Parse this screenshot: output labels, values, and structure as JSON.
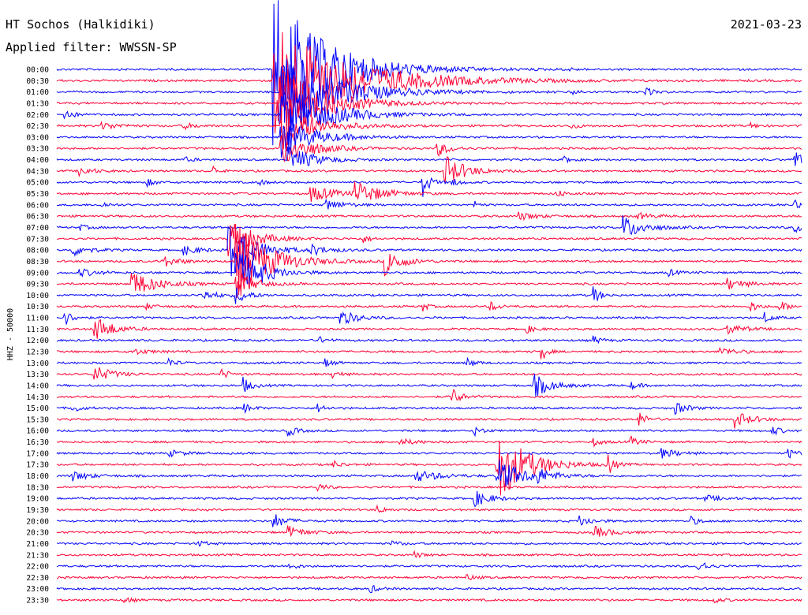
{
  "header": {
    "station": "HT Sochos (Halkidiki)",
    "date": "2021-03-23",
    "filter": "Applied filter: WWSSN-SP"
  },
  "chart_data": {
    "type": "line",
    "title": "HT Sochos (Halkidiki)",
    "subtitle": "Applied filter: WWSSN-SP",
    "date": "2021-03-23",
    "ylabel": "HHZ - 50000",
    "y_tick_labels": [
      "00:00",
      "00:30",
      "01:00",
      "01:30",
      "02:00",
      "02:30",
      "03:00",
      "03:30",
      "04:00",
      "04:30",
      "05:00",
      "05:30",
      "06:00",
      "06:30",
      "07:00",
      "07:30",
      "08:00",
      "08:30",
      "09:00",
      "09:30",
      "10:00",
      "10:30",
      "11:00",
      "11:30",
      "12:00",
      "12:30",
      "13:00",
      "13:30",
      "14:00",
      "14:30",
      "15:00",
      "15:30",
      "16:00",
      "16:30",
      "17:00",
      "17:30",
      "18:00",
      "18:30",
      "19:00",
      "19:30",
      "20:00",
      "20:30",
      "21:00",
      "21:30",
      "22:00",
      "22:30",
      "23:00",
      "23:30"
    ],
    "trace_minutes": 30,
    "colors": [
      "#0000ff",
      "#ff0033"
    ],
    "series": [
      {
        "events": [
          {
            "t": 0.29,
            "a": 8.0,
            "d": 0.065
          },
          {
            "t": 0.68,
            "a": 0.2,
            "d": 0.01
          }
        ]
      },
      {
        "events": [
          {
            "t": 0.29,
            "a": 6.0,
            "d": 0.09
          }
        ]
      },
      {
        "events": [
          {
            "t": 0.3,
            "a": 5.0,
            "d": 0.06
          },
          {
            "t": 0.69,
            "a": 0.3,
            "d": 0.01
          },
          {
            "t": 0.79,
            "a": 0.4,
            "d": 0.01
          }
        ]
      },
      {
        "events": [
          {
            "t": 0.3,
            "a": 4.0,
            "d": 0.05
          }
        ]
      },
      {
        "events": [
          {
            "t": 0.01,
            "a": 0.6,
            "d": 0.01
          },
          {
            "t": 0.3,
            "a": 3.5,
            "d": 0.05
          }
        ]
      },
      {
        "events": [
          {
            "t": 0.06,
            "a": 0.4,
            "d": 0.02
          },
          {
            "t": 0.17,
            "a": 0.3,
            "d": 0.015
          },
          {
            "t": 0.3,
            "a": 2.5,
            "d": 0.04
          },
          {
            "t": 0.69,
            "a": 0.3,
            "d": 0.01
          },
          {
            "t": 0.93,
            "a": 0.3,
            "d": 0.01
          }
        ]
      },
      {
        "events": [
          {
            "t": 0.3,
            "a": 2.0,
            "d": 0.04
          }
        ]
      },
      {
        "events": [
          {
            "t": 0.3,
            "a": 1.8,
            "d": 0.035
          },
          {
            "t": 0.51,
            "a": 0.8,
            "d": 0.015
          }
        ]
      },
      {
        "events": [
          {
            "t": 0.31,
            "a": 1.4,
            "d": 0.03
          },
          {
            "t": 0.17,
            "a": 0.3,
            "d": 0.01
          },
          {
            "t": 0.68,
            "a": 0.3,
            "d": 0.01
          },
          {
            "t": 0.99,
            "a": 1.5,
            "d": 0.006
          }
        ]
      },
      {
        "events": [
          {
            "t": 0.03,
            "a": 0.5,
            "d": 0.015
          },
          {
            "t": 0.21,
            "a": 0.5,
            "d": 0.006
          },
          {
            "t": 0.52,
            "a": 1.6,
            "d": 0.025
          }
        ]
      },
      {
        "events": [
          {
            "t": 0.12,
            "a": 0.4,
            "d": 0.01
          },
          {
            "t": 0.27,
            "a": 0.3,
            "d": 0.01
          },
          {
            "t": 0.49,
            "a": 1.8,
            "d": 0.008
          },
          {
            "t": 0.53,
            "a": 0.4,
            "d": 0.01
          }
        ]
      },
      {
        "events": [
          {
            "t": 0.34,
            "a": 0.8,
            "d": 0.03
          },
          {
            "t": 0.4,
            "a": 1.2,
            "d": 0.03
          },
          {
            "t": 0.67,
            "a": 0.4,
            "d": 0.01
          }
        ]
      },
      {
        "events": [
          {
            "t": 0.06,
            "a": 0.3,
            "d": 0.01
          },
          {
            "t": 0.36,
            "a": 0.6,
            "d": 0.02
          },
          {
            "t": 0.56,
            "a": 0.4,
            "d": 0.006
          },
          {
            "t": 0.99,
            "a": 0.8,
            "d": 0.006
          }
        ]
      },
      {
        "events": [
          {
            "t": 0.62,
            "a": 0.4,
            "d": 0.02
          },
          {
            "t": 0.78,
            "a": 0.3,
            "d": 0.02
          }
        ]
      },
      {
        "events": [
          {
            "t": 0.03,
            "a": 0.3,
            "d": 0.01
          },
          {
            "t": 0.76,
            "a": 1.2,
            "d": 0.025
          },
          {
            "t": 0.99,
            "a": 0.6,
            "d": 0.01
          }
        ]
      },
      {
        "events": [
          {
            "t": 0.23,
            "a": 2.0,
            "d": 0.03
          },
          {
            "t": 0.41,
            "a": 0.4,
            "d": 0.01
          }
        ]
      },
      {
        "events": [
          {
            "t": 0.02,
            "a": 0.6,
            "d": 0.02
          },
          {
            "t": 0.17,
            "a": 0.5,
            "d": 0.02
          },
          {
            "t": 0.23,
            "a": 3.0,
            "d": 0.03
          },
          {
            "t": 0.34,
            "a": 0.5,
            "d": 0.02
          }
        ]
      },
      {
        "events": [
          {
            "t": 0.14,
            "a": 0.6,
            "d": 0.02
          },
          {
            "t": 0.24,
            "a": 4.0,
            "d": 0.04
          },
          {
            "t": 0.44,
            "a": 1.4,
            "d": 0.02
          }
        ]
      },
      {
        "events": [
          {
            "t": 0.03,
            "a": 0.4,
            "d": 0.02
          },
          {
            "t": 0.24,
            "a": 2.5,
            "d": 0.03
          },
          {
            "t": 0.27,
            "a": 0.5,
            "d": 0.01
          },
          {
            "t": 0.82,
            "a": 0.4,
            "d": 0.01
          }
        ]
      },
      {
        "events": [
          {
            "t": 0.1,
            "a": 1.3,
            "d": 0.03
          },
          {
            "t": 0.24,
            "a": 1.5,
            "d": 0.02
          },
          {
            "t": 0.9,
            "a": 0.6,
            "d": 0.02
          }
        ]
      },
      {
        "events": [
          {
            "t": 0.19,
            "a": 0.6,
            "d": 0.02
          },
          {
            "t": 0.24,
            "a": 0.8,
            "d": 0.015
          },
          {
            "t": 0.72,
            "a": 1.0,
            "d": 0.008
          }
        ]
      },
      {
        "events": [
          {
            "t": 0.12,
            "a": 0.3,
            "d": 0.01
          },
          {
            "t": 0.49,
            "a": 0.6,
            "d": 0.006
          },
          {
            "t": 0.58,
            "a": 0.6,
            "d": 0.01
          },
          {
            "t": 0.93,
            "a": 0.6,
            "d": 0.01
          },
          {
            "t": 0.97,
            "a": 0.6,
            "d": 0.01
          }
        ]
      },
      {
        "events": [
          {
            "t": 0.01,
            "a": 0.8,
            "d": 0.01
          },
          {
            "t": 0.38,
            "a": 0.8,
            "d": 0.02
          },
          {
            "t": 0.95,
            "a": 0.5,
            "d": 0.01
          }
        ]
      },
      {
        "events": [
          {
            "t": 0.05,
            "a": 1.4,
            "d": 0.02
          },
          {
            "t": 0.63,
            "a": 0.4,
            "d": 0.01
          },
          {
            "t": 0.9,
            "a": 0.5,
            "d": 0.02
          }
        ]
      },
      {
        "events": [
          {
            "t": 0.35,
            "a": 0.4,
            "d": 0.01
          },
          {
            "t": 0.72,
            "a": 0.4,
            "d": 0.01
          }
        ]
      },
      {
        "events": [
          {
            "t": 0.1,
            "a": 0.3,
            "d": 0.02
          },
          {
            "t": 0.65,
            "a": 1.2,
            "d": 0.006
          },
          {
            "t": 0.89,
            "a": 0.4,
            "d": 0.02
          }
        ]
      },
      {
        "events": [
          {
            "t": 0.15,
            "a": 0.5,
            "d": 0.008
          },
          {
            "t": 0.36,
            "a": 0.4,
            "d": 0.01
          },
          {
            "t": 0.55,
            "a": 0.5,
            "d": 0.01
          }
        ]
      },
      {
        "events": [
          {
            "t": 0.05,
            "a": 0.9,
            "d": 0.02
          },
          {
            "t": 0.22,
            "a": 0.5,
            "d": 0.01
          },
          {
            "t": 0.37,
            "a": 0.4,
            "d": 0.01
          }
        ]
      },
      {
        "events": [
          {
            "t": 0.25,
            "a": 0.8,
            "d": 0.01
          },
          {
            "t": 0.64,
            "a": 1.2,
            "d": 0.02
          },
          {
            "t": 0.77,
            "a": 0.4,
            "d": 0.01
          }
        ]
      },
      {
        "events": [
          {
            "t": 0.53,
            "a": 1.0,
            "d": 0.01
          }
        ]
      },
      {
        "events": [
          {
            "t": 0.02,
            "a": 0.5,
            "d": 0.01
          },
          {
            "t": 0.25,
            "a": 0.5,
            "d": 0.01
          },
          {
            "t": 0.35,
            "a": 0.4,
            "d": 0.01
          },
          {
            "t": 0.83,
            "a": 0.6,
            "d": 0.015
          }
        ]
      },
      {
        "events": [
          {
            "t": 0.78,
            "a": 0.8,
            "d": 0.01
          },
          {
            "t": 0.91,
            "a": 0.8,
            "d": 0.02
          }
        ]
      },
      {
        "events": [
          {
            "t": 0.31,
            "a": 0.6,
            "d": 0.01
          },
          {
            "t": 0.56,
            "a": 0.5,
            "d": 0.01
          },
          {
            "t": 0.96,
            "a": 0.5,
            "d": 0.01
          }
        ]
      },
      {
        "events": [
          {
            "t": 0.46,
            "a": 0.3,
            "d": 0.02
          },
          {
            "t": 0.72,
            "a": 0.4,
            "d": 0.01
          },
          {
            "t": 0.77,
            "a": 0.5,
            "d": 0.01
          }
        ]
      },
      {
        "events": [
          {
            "t": 0.15,
            "a": 0.3,
            "d": 0.02
          },
          {
            "t": 0.81,
            "a": 0.5,
            "d": 0.02
          },
          {
            "t": 0.98,
            "a": 0.6,
            "d": 0.01
          }
        ]
      },
      {
        "events": [
          {
            "t": 0.37,
            "a": 0.4,
            "d": 0.01
          },
          {
            "t": 0.59,
            "a": 4.0,
            "d": 0.035
          },
          {
            "t": 0.74,
            "a": 1.3,
            "d": 0.006
          }
        ]
      },
      {
        "events": [
          {
            "t": 0.02,
            "a": 0.5,
            "d": 0.02
          },
          {
            "t": 0.48,
            "a": 0.6,
            "d": 0.03
          },
          {
            "t": 0.59,
            "a": 1.8,
            "d": 0.03
          },
          {
            "t": 0.64,
            "a": 0.7,
            "d": 0.02
          }
        ]
      },
      {
        "events": [
          {
            "t": 0.35,
            "a": 0.4,
            "d": 0.01
          }
        ]
      },
      {
        "events": [
          {
            "t": 0.56,
            "a": 0.8,
            "d": 0.02
          },
          {
            "t": 0.87,
            "a": 0.3,
            "d": 0.02
          }
        ]
      },
      {
        "events": [
          {
            "t": 0.43,
            "a": 0.4,
            "d": 0.01
          }
        ]
      },
      {
        "events": [
          {
            "t": 0.29,
            "a": 0.8,
            "d": 0.015
          },
          {
            "t": 0.7,
            "a": 0.6,
            "d": 0.015
          },
          {
            "t": 0.85,
            "a": 0.5,
            "d": 0.01
          }
        ]
      },
      {
        "events": [
          {
            "t": 0.31,
            "a": 0.6,
            "d": 0.02
          },
          {
            "t": 0.72,
            "a": 0.6,
            "d": 0.02
          }
        ]
      },
      {
        "events": [
          {
            "t": 0.19,
            "a": 0.3,
            "d": 0.01
          },
          {
            "t": 0.45,
            "a": 0.3,
            "d": 0.01
          }
        ]
      },
      {
        "events": [
          {
            "t": 0.48,
            "a": 0.3,
            "d": 0.01
          }
        ]
      },
      {
        "events": [
          {
            "t": 0.31,
            "a": 0.4,
            "d": 0.01
          },
          {
            "t": 0.86,
            "a": 0.8,
            "d": 0.01
          }
        ]
      },
      {
        "events": [
          {
            "t": 0.55,
            "a": 0.3,
            "d": 0.01
          }
        ]
      },
      {
        "events": [
          {
            "t": 0.42,
            "a": 0.4,
            "d": 0.01
          }
        ]
      },
      {
        "events": [
          {
            "t": 0.09,
            "a": 0.3,
            "d": 0.01
          },
          {
            "t": 0.88,
            "a": 0.3,
            "d": 0.01
          }
        ]
      }
    ]
  }
}
